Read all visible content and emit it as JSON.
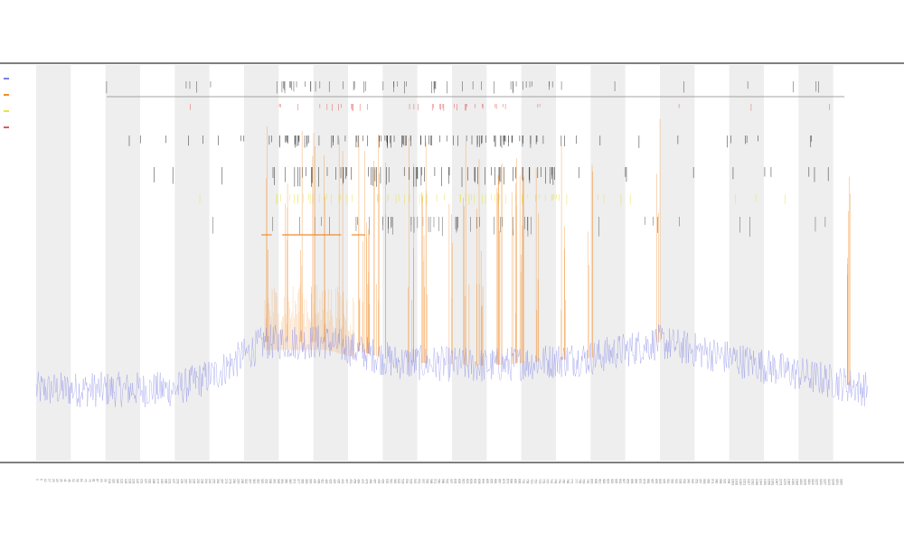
{
  "chart_data": {
    "type": "line",
    "title": "",
    "subtitle_lines": [
      "",
      ""
    ],
    "xlabel": "",
    "ylabel": "",
    "grid": false,
    "alternating_bands": true,
    "band_count": 24,
    "legend_position": "top-left",
    "x": {
      "start": 0,
      "end": 1200,
      "step": 1
    },
    "series": [
      {
        "name": "",
        "color": "#7b7fe6",
        "kind": "line",
        "noise_level": "baseline"
      },
      {
        "name": "",
        "color": "#f28c28",
        "kind": "spikes"
      },
      {
        "name": "",
        "color": "#e8e34a",
        "kind": "events"
      },
      {
        "name": "",
        "color": "#e05a5a",
        "kind": "events"
      },
      {
        "name": "",
        "color": "#222222",
        "kind": "events"
      }
    ],
    "event_rows": [
      "",
      "",
      "",
      "",
      ""
    ],
    "baseline_profile": [
      {
        "x": 0,
        "y": 0.18
      },
      {
        "x": 200,
        "y": 0.18
      },
      {
        "x": 260,
        "y": 0.22
      },
      {
        "x": 330,
        "y": 0.3
      },
      {
        "x": 420,
        "y": 0.3
      },
      {
        "x": 520,
        "y": 0.25
      },
      {
        "x": 650,
        "y": 0.24
      },
      {
        "x": 800,
        "y": 0.26
      },
      {
        "x": 900,
        "y": 0.3
      },
      {
        "x": 1000,
        "y": 0.26
      },
      {
        "x": 1100,
        "y": 0.22
      },
      {
        "x": 1200,
        "y": 0.18
      }
    ],
    "ylim": [
      0,
      1
    ]
  },
  "colors": {
    "band": "#eeeeee",
    "axis": "#333333",
    "baseline": "#7b7fe6",
    "spike": "#f28c28"
  }
}
